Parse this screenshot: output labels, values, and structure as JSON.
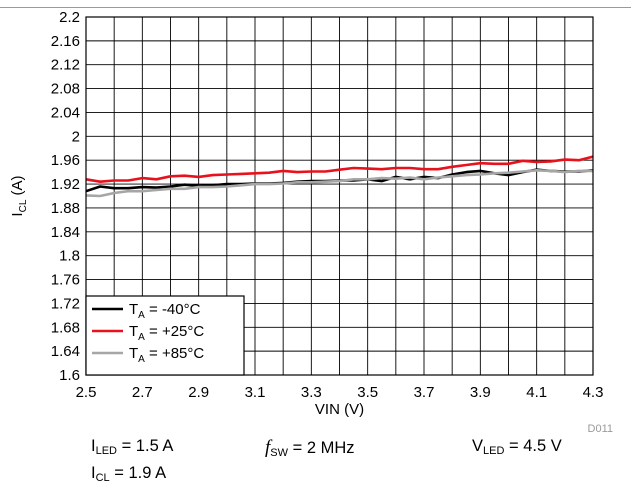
{
  "chart_data": {
    "type": "line",
    "title": "",
    "xlabel": "VIN (V)",
    "ylabel_main": "I",
    "ylabel_sub": "CL",
    "ylabel_tail": " (A)",
    "xlim": [
      2.5,
      4.3
    ],
    "ylim": [
      1.6,
      2.2
    ],
    "x_ticks": [
      "2.5",
      "2.7",
      "2.9",
      "3.1",
      "3.3",
      "3.5",
      "3.7",
      "3.9",
      "4.1",
      "4.3"
    ],
    "y_ticks": [
      "1.6",
      "1.64",
      "1.68",
      "1.72",
      "1.76",
      "1.8",
      "1.84",
      "1.88",
      "1.92",
      "1.96",
      "2",
      "2.04",
      "2.08",
      "2.12",
      "2.16",
      "2.2"
    ],
    "grid": true,
    "legend_position": "bottom-left",
    "watermark": "D011",
    "x": [
      2.5,
      2.55,
      2.6,
      2.65,
      2.7,
      2.75,
      2.8,
      2.85,
      2.9,
      2.95,
      3.0,
      3.05,
      3.1,
      3.15,
      3.2,
      3.25,
      3.3,
      3.35,
      3.4,
      3.45,
      3.5,
      3.55,
      3.6,
      3.65,
      3.7,
      3.75,
      3.8,
      3.85,
      3.9,
      3.95,
      4.0,
      4.05,
      4.1,
      4.15,
      4.2,
      4.25,
      4.3
    ],
    "series": [
      {
        "legend_prefix": "T",
        "legend_sub": "A",
        "legend_suffix": " = -40°C",
        "color": "#000000",
        "values": [
          1.908,
          1.916,
          1.913,
          1.913,
          1.915,
          1.914,
          1.916,
          1.919,
          1.917,
          1.918,
          1.92,
          1.92,
          1.921,
          1.921,
          1.922,
          1.924,
          1.925,
          1.925,
          1.926,
          1.926,
          1.928,
          1.925,
          1.932,
          1.928,
          1.932,
          1.93,
          1.936,
          1.94,
          1.942,
          1.938,
          1.935,
          1.94,
          1.944,
          1.942,
          1.941,
          1.941,
          1.943
        ]
      },
      {
        "legend_prefix": "T",
        "legend_sub": "A",
        "legend_suffix": " = +25°C",
        "color": "#e8121c",
        "values": [
          1.928,
          1.924,
          1.926,
          1.926,
          1.93,
          1.928,
          1.933,
          1.934,
          1.932,
          1.935,
          1.936,
          1.937,
          1.938,
          1.939,
          1.942,
          1.94,
          1.941,
          1.941,
          1.944,
          1.947,
          1.946,
          1.945,
          1.947,
          1.947,
          1.945,
          1.945,
          1.949,
          1.952,
          1.955,
          1.954,
          1.954,
          1.959,
          1.957,
          1.958,
          1.961,
          1.96,
          1.966
        ]
      },
      {
        "legend_prefix": "T",
        "legend_sub": "A",
        "legend_suffix": " = +85°C",
        "color": "#a6a6a6",
        "values": [
          1.901,
          1.9,
          1.905,
          1.908,
          1.908,
          1.91,
          1.912,
          1.912,
          1.915,
          1.915,
          1.916,
          1.918,
          1.92,
          1.92,
          1.921,
          1.923,
          1.923,
          1.924,
          1.925,
          1.928,
          1.928,
          1.93,
          1.929,
          1.931,
          1.928,
          1.931,
          1.933,
          1.935,
          1.936,
          1.938,
          1.939,
          1.941,
          1.943,
          1.942,
          1.94,
          1.942,
          1.942
        ]
      }
    ]
  },
  "conditions": {
    "iled_main": "I",
    "iled_sub": "LED",
    "iled_tail": " = 1.5 A",
    "fsw_main": "f",
    "fsw_sub": "SW",
    "fsw_tail": " = 2 MHz",
    "vled_main": "V",
    "vled_sub": "LED",
    "vled_tail": " = 4.5 V",
    "icl_main": "I",
    "icl_sub": "CL",
    "icl_tail": " = 1.9 A"
  }
}
